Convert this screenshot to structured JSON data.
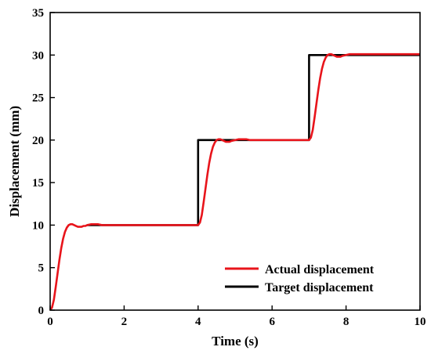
{
  "chart_data": {
    "type": "line",
    "title": "",
    "xlabel": "Time (s)",
    "ylabel": "Displacement (mm)",
    "xlim": [
      0,
      10
    ],
    "ylim": [
      0,
      35
    ],
    "xticks": [
      0,
      2,
      4,
      6,
      8,
      10
    ],
    "yticks": [
      0,
      5,
      10,
      15,
      20,
      25,
      30,
      35
    ],
    "grid": false,
    "legend_position": "bottom-right",
    "series": [
      {
        "name": "Actual displacement",
        "color": "#e8141b",
        "x": [
          0,
          0.05,
          0.1,
          0.15,
          0.2,
          0.25,
          0.3,
          0.35,
          0.4,
          0.45,
          0.5,
          0.55,
          0.6,
          0.65,
          0.7,
          0.75,
          0.8,
          0.85,
          0.9,
          0.95,
          1.0,
          1.1,
          1.2,
          1.3,
          1.4,
          1.5,
          1.6,
          1.8,
          2.0,
          2.5,
          3.0,
          3.5,
          3.9,
          4.0,
          4.05,
          4.1,
          4.15,
          4.2,
          4.25,
          4.3,
          4.35,
          4.4,
          4.45,
          4.5,
          4.55,
          4.6,
          4.65,
          4.7,
          4.75,
          4.8,
          4.85,
          4.9,
          5.0,
          5.1,
          5.2,
          5.3,
          5.4,
          5.6,
          5.8,
          6.0,
          6.5,
          6.9,
          7.0,
          7.05,
          7.1,
          7.15,
          7.2,
          7.25,
          7.3,
          7.35,
          7.4,
          7.45,
          7.5,
          7.55,
          7.6,
          7.65,
          7.7,
          7.75,
          7.8,
          7.85,
          7.9,
          8.0,
          8.1,
          8.2,
          8.3,
          8.4,
          8.6,
          8.8,
          9.0,
          9.5,
          10.0
        ],
        "y": [
          0,
          0.3,
          1.2,
          2.7,
          4.3,
          5.9,
          7.3,
          8.4,
          9.2,
          9.7,
          10.0,
          10.1,
          10.1,
          10.0,
          9.9,
          9.8,
          9.8,
          9.8,
          9.9,
          9.9,
          10.0,
          10.1,
          10.1,
          10.1,
          10.0,
          10.0,
          10.0,
          10.0,
          10.0,
          10.0,
          10.0,
          10.0,
          10.0,
          10.0,
          10.3,
          11.2,
          12.7,
          14.3,
          15.9,
          17.3,
          18.4,
          19.2,
          19.7,
          20.0,
          20.1,
          20.1,
          20.0,
          19.9,
          19.8,
          19.8,
          19.8,
          19.9,
          20.0,
          20.1,
          20.1,
          20.1,
          20.0,
          20.0,
          20.0,
          20.0,
          20.0,
          20.0,
          20.0,
          20.3,
          21.2,
          22.7,
          24.3,
          25.9,
          27.3,
          28.4,
          29.2,
          29.7,
          30.0,
          30.1,
          30.1,
          30.0,
          29.9,
          29.8,
          29.8,
          29.8,
          29.9,
          30.0,
          30.1,
          30.1,
          30.1,
          30.1,
          30.1,
          30.1,
          30.1,
          30.1,
          30.1
        ]
      },
      {
        "name": "Target displacement",
        "color": "#000000",
        "x": [
          1,
          4,
          4,
          7,
          7,
          10
        ],
        "y": [
          10,
          10,
          20,
          20,
          30,
          30
        ]
      }
    ]
  }
}
